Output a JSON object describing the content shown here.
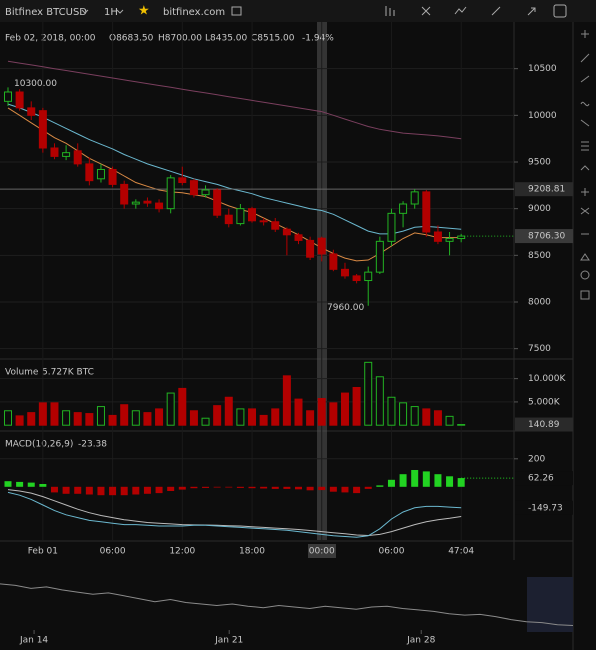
{
  "toolbar": {
    "symbol": "Bitfinex BTCUSD",
    "interval": "1H",
    "site": "bitfinex.com"
  },
  "chart_data": [
    {
      "type": "candlestick",
      "date": "Feb 02, 2018, 00:00",
      "ohlc": [
        "O8683.50",
        "H8700.00",
        "L8435.00",
        "C8515.00"
      ],
      "change": "-1.94%",
      "open": [
        10150,
        10250,
        10080,
        10050,
        9650,
        9560,
        9620,
        9480,
        9320,
        9420,
        9260,
        9050,
        9080,
        9060,
        9000,
        9330,
        9300,
        9150,
        9200,
        8930,
        8840,
        9000,
        8870,
        8860,
        8780,
        8720,
        8660,
        8683.5,
        8515,
        8350,
        8280,
        8230,
        8320,
        8650,
        8950,
        9050,
        9180,
        8750,
        8650,
        8680
      ],
      "high": [
        10300,
        10280,
        10150,
        10080,
        9700,
        9680,
        9700,
        9550,
        9480,
        9450,
        9300,
        9100,
        9120,
        9100,
        9360,
        9450,
        9320,
        9250,
        9220,
        9000,
        9050,
        9020,
        8900,
        8900,
        8800,
        8740,
        8700,
        8700,
        8560,
        8420,
        8300,
        8380,
        8700,
        9000,
        9080,
        9208.81,
        9200,
        8820,
        8750,
        8730
      ],
      "low": [
        10100,
        10050,
        9950,
        9600,
        9530,
        9520,
        9450,
        9250,
        9280,
        9230,
        9000,
        9000,
        9020,
        8960,
        8950,
        9250,
        9120,
        9120,
        8900,
        8800,
        8820,
        8850,
        8820,
        8750,
        8500,
        8620,
        8450,
        8435,
        8330,
        8250,
        8200,
        7960,
        8300,
        8600,
        8800,
        9000,
        8700,
        8620,
        8500,
        8640
      ],
      "close": [
        10250,
        10080,
        10000,
        9650,
        9560,
        9600,
        9480,
        9300,
        9420,
        9260,
        9050,
        9070,
        9060,
        9000,
        9330,
        9280,
        9150,
        9200,
        8930,
        8840,
        9000,
        8870,
        8860,
        8780,
        8720,
        8660,
        8480,
        8515,
        8350,
        8280,
        8230,
        8320,
        8650,
        8950,
        9050,
        9180,
        8750,
        8650,
        8680,
        8706.3
      ],
      "up_color": "#22b322",
      "down_color": "#b30000",
      "lines": [
        {
          "color": "#6bb8cf",
          "values": [
            10120,
            10080,
            10030,
            9980,
            9920,
            9860,
            9800,
            9740,
            9690,
            9640,
            9580,
            9530,
            9480,
            9440,
            9400,
            9360,
            9320,
            9290,
            9260,
            9220,
            9190,
            9160,
            9120,
            9090,
            9060,
            9030,
            9000,
            8980,
            8940,
            8880,
            8820,
            8760,
            8730,
            8730,
            8760,
            8800,
            8810,
            8800,
            8790,
            8780
          ]
        },
        {
          "color": "#d98a45",
          "values": [
            10080,
            10000,
            9920,
            9840,
            9760,
            9700,
            9620,
            9540,
            9480,
            9420,
            9350,
            9280,
            9240,
            9200,
            9180,
            9170,
            9150,
            9130,
            9080,
            9030,
            8990,
            8960,
            8900,
            8840,
            8780,
            8720,
            8650,
            8580,
            8520,
            8470,
            8440,
            8450,
            8520,
            8600,
            8680,
            8740,
            8720,
            8690,
            8690,
            8690
          ]
        },
        {
          "color": "#7a3f5e",
          "values": [
            10580,
            10560,
            10540,
            10520,
            10500,
            10480,
            10460,
            10440,
            10420,
            10400,
            10380,
            10360,
            10340,
            10320,
            10300,
            10280,
            10260,
            10240,
            10220,
            10200,
            10180,
            10160,
            10140,
            10120,
            10100,
            10080,
            10060,
            10040,
            10000,
            9960,
            9920,
            9880,
            9850,
            9830,
            9810,
            9800,
            9790,
            9780,
            9765,
            9750
          ]
        }
      ],
      "ylim": [
        7400,
        11000
      ],
      "yticks": [
        7500,
        8000,
        8500,
        9000,
        9500,
        10000,
        10500
      ],
      "xticks": [
        {
          "value": 3,
          "label": "Feb 01"
        },
        {
          "value": 9,
          "label": "06:00"
        },
        {
          "value": 15,
          "label": "12:00"
        },
        {
          "value": 21,
          "label": "18:00"
        },
        {
          "value": 27,
          "label": "00:00"
        },
        {
          "value": 33,
          "label": "06:00"
        },
        {
          "value": 39,
          "label": "47:04"
        }
      ],
      "high_label": {
        "value": 10300,
        "label": "10300.00"
      },
      "low_label": {
        "value": 7960,
        "label": "7960.00"
      },
      "hline": {
        "value": 9208.81,
        "label": "9208.81"
      },
      "last": {
        "value": 8706.3,
        "label": "8706.30"
      }
    },
    {
      "type": "bar",
      "title": "Volume",
      "label": "5.727K BTC",
      "values": [
        3100,
        2000,
        2700,
        4800,
        4800,
        3100,
        2700,
        2500,
        4000,
        2100,
        4400,
        3100,
        2700,
        3500,
        6900,
        7900,
        3100,
        1500,
        4200,
        6000,
        3500,
        3500,
        2100,
        3500,
        10600,
        5600,
        3100,
        5727,
        4800,
        6900,
        8100,
        13500,
        10400,
        6000,
        4800,
        4000,
        3500,
        3100,
        1900,
        140.89
      ],
      "ylim": [
        -600,
        14000
      ],
      "yticks": [
        {
          "value": 5000,
          "label": "5.000K"
        },
        {
          "value": 10000,
          "label": "10.000K"
        }
      ]
    },
    {
      "type": "macd",
      "title": "MACD(10,26,9)",
      "histogram": [
        40,
        35,
        30,
        20,
        -40,
        -50,
        -50,
        -55,
        -60,
        -60,
        -60,
        -55,
        -50,
        -45,
        -30,
        -20,
        -10,
        -8,
        -5,
        -5,
        -8,
        -10,
        -12,
        -15,
        -15,
        -18,
        -25,
        -23.38,
        -35,
        -40,
        -45,
        -15,
        10,
        50,
        90,
        120,
        110,
        90,
        75,
        62.26
      ],
      "macd": [
        -40,
        -60,
        -90,
        -130,
        -170,
        -200,
        -220,
        -240,
        -250,
        -260,
        -270,
        -270,
        -275,
        -280,
        -280,
        -280,
        -275,
        -275,
        -280,
        -285,
        -290,
        -295,
        -300,
        -305,
        -310,
        -320,
        -330,
        -340,
        -350,
        -355,
        -360,
        -350,
        -300,
        -230,
        -180,
        -150,
        -140,
        -140,
        -145,
        -149.73
      ],
      "signal": [
        -20,
        -30,
        -45,
        -70,
        -100,
        -130,
        -160,
        -185,
        -205,
        -220,
        -235,
        -245,
        -255,
        -260,
        -265,
        -270,
        -272,
        -273,
        -275,
        -278,
        -280,
        -285,
        -290,
        -295,
        -300,
        -305,
        -312,
        -320,
        -328,
        -336,
        -344,
        -348,
        -340,
        -320,
        -295,
        -270,
        -250,
        -235,
        -225,
        -212
      ],
      "up_color": "#22d322",
      "down_color": "#b30000",
      "macd_color": "#6bb8cf",
      "signal_color": "#bbbbbb",
      "ylim": [
        -380,
        370
      ],
      "yticks": [
        200
      ]
    },
    {
      "type": "line",
      "color": "#8a8a8a",
      "values": [
        14200,
        14000,
        13600,
        13800,
        13400,
        13100,
        12800,
        13000,
        12600,
        12200,
        11800,
        12100,
        11700,
        11500,
        11300,
        11500,
        11200,
        11000,
        11300,
        11100,
        10900,
        11200,
        11000,
        10800,
        11100,
        11200,
        10900,
        10700,
        10500,
        10200,
        10000,
        10100,
        9800,
        9400,
        9100,
        9000,
        8700,
        8600
      ],
      "ylim": [
        8000,
        15000
      ],
      "xticks": [
        {
          "value": 2.2,
          "label": "Jan 14"
        },
        {
          "value": 14.8,
          "label": "Jan 21"
        },
        {
          "value": 27.2,
          "label": "Jan 28"
        }
      ]
    }
  ]
}
